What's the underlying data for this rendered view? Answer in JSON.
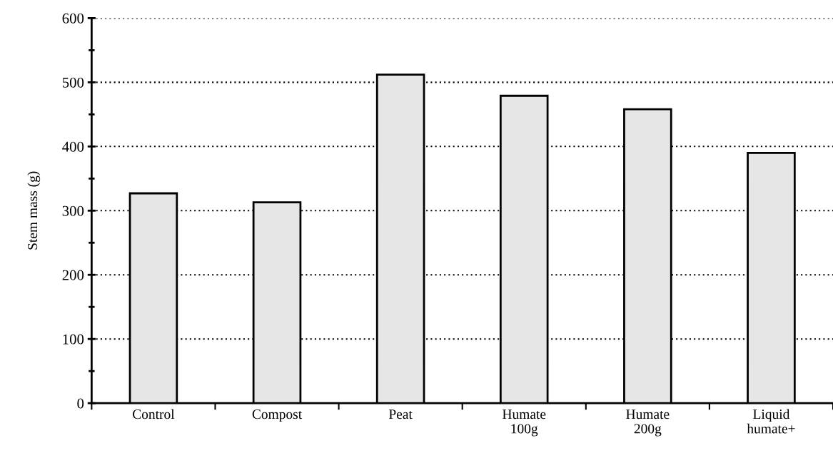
{
  "chart_data": {
    "type": "bar",
    "ylabel": "Stem mass (g)",
    "categories": [
      "Control",
      "Compost",
      "Peat",
      "Humate\n100g",
      "Humate\n200g",
      "Liquid\nhumate+"
    ],
    "values": [
      327,
      313,
      512,
      479,
      458,
      390
    ],
    "color": "#e6e6e6",
    "ylim": [
      0,
      600
    ],
    "yticks": [
      0,
      100,
      200,
      300,
      400,
      500,
      600
    ],
    "grid": "y"
  }
}
